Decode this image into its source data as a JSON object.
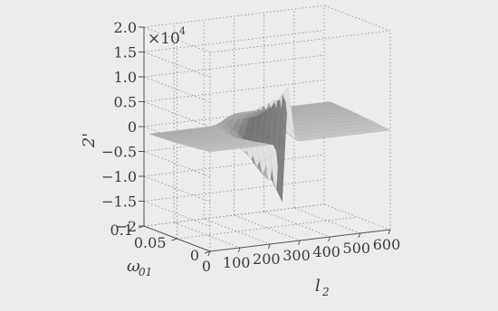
{
  "chart_data": {
    "type": "surface",
    "x": {
      "label": "l",
      "label_sub": "2",
      "range": [
        0,
        600
      ],
      "ticks": [
        0,
        100,
        200,
        300,
        400,
        500,
        600
      ],
      "tick_labels": [
        "0",
        "100",
        "200",
        "300",
        "400",
        "500",
        "600"
      ]
    },
    "y": {
      "label": "ω",
      "label_sub": "01",
      "range": [
        0,
        0.1
      ],
      "ticks": [
        0,
        0.05,
        0.1
      ],
      "tick_labels": [
        "0",
        "0.05",
        "0.1"
      ]
    },
    "z": {
      "label": "l",
      "label_prime": "2'",
      "multiplier_base": "×10",
      "multiplier_exp": "4",
      "range": [
        -2,
        2
      ],
      "ticks": [
        2.0,
        1.5,
        1.0,
        0.5,
        0,
        -0.5,
        -1.0,
        -1.5,
        -2
      ],
      "tick_labels": [
        "2.0",
        "1.5",
        "1.0",
        "0.5",
        "0",
        "−0.5",
        "−1.0",
        "−1.5",
        "−2"
      ]
    },
    "surface": {
      "peak_l2": 250,
      "peak_value": 1.8,
      "trough_value": -1.9,
      "baseline": 0
    },
    "grid": true,
    "colors": {
      "surface_light": "#d6d6d6",
      "surface_dark": "#7a7a7a",
      "edge": "#6c6c6c"
    }
  }
}
